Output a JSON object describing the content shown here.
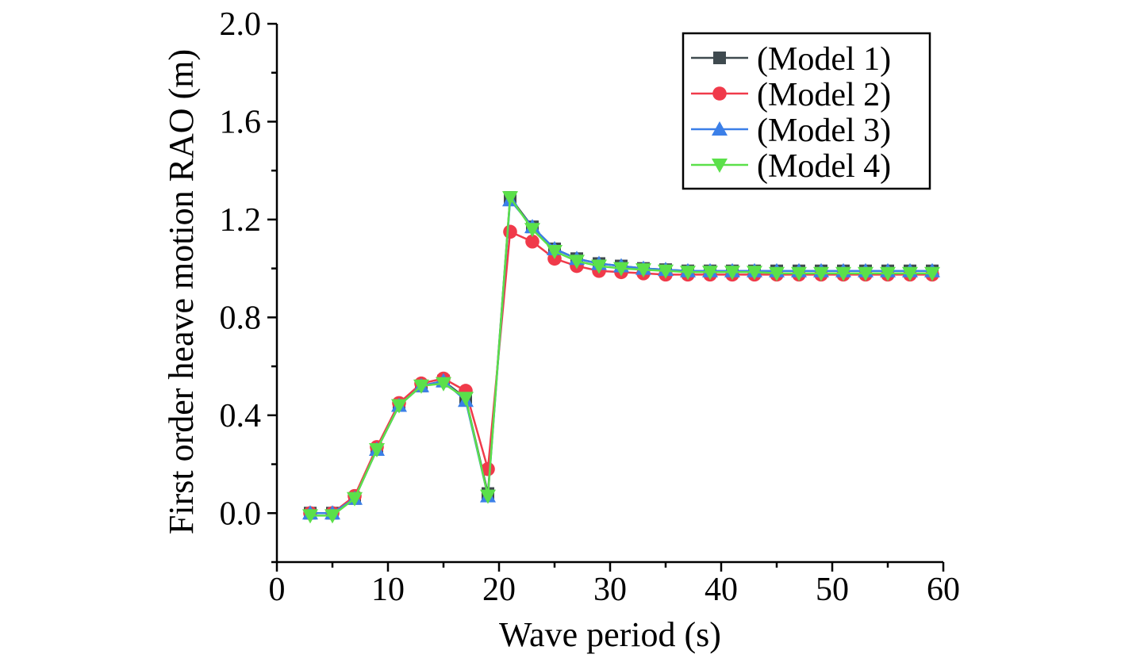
{
  "chart_data": {
    "type": "line",
    "title": "",
    "xlabel": "Wave period (s)",
    "ylabel": "First order heave motion RAO (m)",
    "xlim": [
      0,
      60
    ],
    "ylim": [
      -0.2,
      2.0
    ],
    "xticks": [
      0,
      10,
      20,
      30,
      40,
      50,
      60
    ],
    "xtick_labels": [
      "0",
      "10",
      "20",
      "30",
      "40",
      "50",
      "60"
    ],
    "yticks": [
      0.0,
      0.4,
      0.8,
      1.2,
      1.6,
      2.0
    ],
    "ytick_labels": [
      "0.0",
      "0.4",
      "0.8",
      "1.2",
      "1.6",
      "2.0"
    ],
    "grid": false,
    "legend_position": "top-right",
    "x": [
      3,
      5,
      7,
      9,
      11,
      13,
      15,
      17,
      19,
      21,
      23,
      25,
      27,
      29,
      31,
      33,
      35,
      37,
      39,
      41,
      43,
      45,
      47,
      49,
      51,
      53,
      55,
      57,
      59
    ],
    "series": [
      {
        "name": "(Model 1)",
        "color": "#3f4a4f",
        "marker": "square",
        "values": [
          0.0,
          0.0,
          0.06,
          0.26,
          0.44,
          0.52,
          0.54,
          0.47,
          0.08,
          1.29,
          1.17,
          1.08,
          1.04,
          1.02,
          1.01,
          1.0,
          0.995,
          0.99,
          0.99,
          0.99,
          0.99,
          0.99,
          0.99,
          0.99,
          0.99,
          0.99,
          0.99,
          0.99,
          0.99
        ]
      },
      {
        "name": "(Model 2)",
        "color": "#f03a4a",
        "marker": "circle",
        "values": [
          0.0,
          0.0,
          0.07,
          0.27,
          0.45,
          0.53,
          0.55,
          0.5,
          0.18,
          1.15,
          1.11,
          1.04,
          1.01,
          0.99,
          0.985,
          0.98,
          0.975,
          0.975,
          0.975,
          0.975,
          0.975,
          0.975,
          0.975,
          0.975,
          0.975,
          0.975,
          0.975,
          0.975,
          0.975
        ]
      },
      {
        "name": "(Model 3)",
        "color": "#3b7fe8",
        "marker": "triangle-up",
        "values": [
          0.0,
          0.0,
          0.06,
          0.26,
          0.44,
          0.52,
          0.54,
          0.46,
          0.07,
          1.28,
          1.17,
          1.08,
          1.04,
          1.02,
          1.01,
          1.0,
          0.995,
          0.99,
          0.99,
          0.99,
          0.99,
          0.99,
          0.99,
          0.99,
          0.99,
          0.99,
          0.99,
          0.99,
          0.99
        ]
      },
      {
        "name": "(Model 4)",
        "color": "#5be04a",
        "marker": "triangle-down",
        "values": [
          -0.01,
          -0.01,
          0.06,
          0.26,
          0.44,
          0.52,
          0.53,
          0.47,
          0.07,
          1.29,
          1.16,
          1.07,
          1.03,
          1.01,
          1.0,
          0.995,
          0.99,
          0.985,
          0.985,
          0.985,
          0.985,
          0.98,
          0.98,
          0.98,
          0.98,
          0.98,
          0.98,
          0.98,
          0.98
        ]
      }
    ]
  }
}
